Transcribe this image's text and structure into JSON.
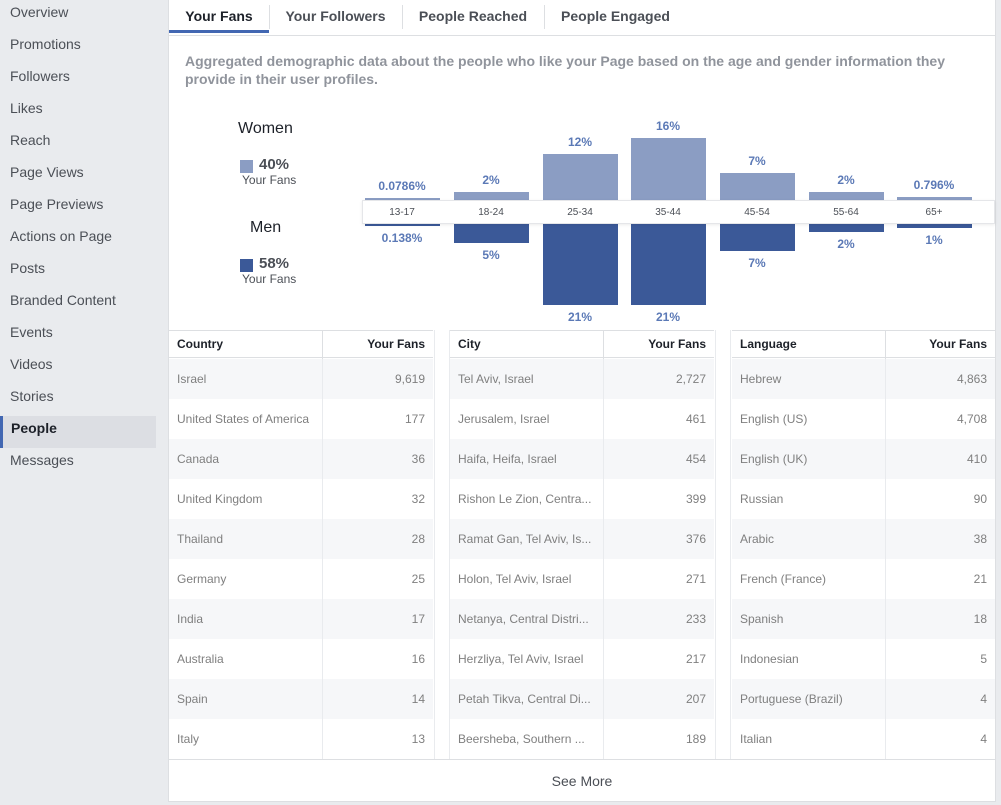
{
  "sidebar": {
    "items": [
      {
        "label": "Overview"
      },
      {
        "label": "Promotions"
      },
      {
        "label": "Followers"
      },
      {
        "label": "Likes"
      },
      {
        "label": "Reach"
      },
      {
        "label": "Page Views"
      },
      {
        "label": "Page Previews"
      },
      {
        "label": "Actions on Page"
      },
      {
        "label": "Posts"
      },
      {
        "label": "Branded Content"
      },
      {
        "label": "Events"
      },
      {
        "label": "Videos"
      },
      {
        "label": "Stories"
      },
      {
        "label": "People",
        "active": true
      },
      {
        "label": "Messages"
      }
    ]
  },
  "tabs": [
    {
      "label": "Your Fans",
      "active": true
    },
    {
      "label": "Your Followers"
    },
    {
      "label": "People Reached"
    },
    {
      "label": "People Engaged"
    }
  ],
  "description": "Aggregated demographic data about the people who like your Page based on the age and gender information they provide in their user profiles.",
  "legend": {
    "women": {
      "title": "Women",
      "pct": "40%",
      "sub": "Your Fans",
      "color": "#8b9dc3"
    },
    "men": {
      "title": "Men",
      "pct": "58%",
      "sub": "Your Fans",
      "color": "#3b5998"
    }
  },
  "chart_data": {
    "type": "bar",
    "categories": [
      "13-17",
      "18-24",
      "25-34",
      "35-44",
      "45-54",
      "55-64",
      "65+"
    ],
    "series": [
      {
        "name": "Women",
        "values": [
          0.0786,
          2,
          12,
          16,
          7,
          2,
          0.796
        ],
        "labels": [
          "0.0786%",
          "2%",
          "12%",
          "16%",
          "7%",
          "2%",
          "0.796%"
        ],
        "color": "#8b9dc3"
      },
      {
        "name": "Men",
        "values": [
          0.138,
          5,
          21,
          21,
          7,
          2,
          1
        ],
        "labels": [
          "0.138%",
          "5%",
          "21%",
          "21%",
          "7%",
          "2%",
          "1%"
        ],
        "color": "#3b5998"
      }
    ]
  },
  "tables": {
    "country": {
      "headers": [
        "Country",
        "Your Fans"
      ],
      "rows": [
        [
          "Israel",
          "9,619"
        ],
        [
          "United States of America",
          "177"
        ],
        [
          "Canada",
          "36"
        ],
        [
          "United Kingdom",
          "32"
        ],
        [
          "Thailand",
          "28"
        ],
        [
          "Germany",
          "25"
        ],
        [
          "India",
          "17"
        ],
        [
          "Australia",
          "16"
        ],
        [
          "Spain",
          "14"
        ],
        [
          "Italy",
          "13"
        ]
      ]
    },
    "city": {
      "headers": [
        "City",
        "Your Fans"
      ],
      "rows": [
        [
          "Tel Aviv, Israel",
          "2,727"
        ],
        [
          "Jerusalem, Israel",
          "461"
        ],
        [
          "Haifa, Heifa, Israel",
          "454"
        ],
        [
          "Rishon Le Zion, Centra...",
          "399"
        ],
        [
          "Ramat Gan, Tel Aviv, Is...",
          "376"
        ],
        [
          "Holon, Tel Aviv, Israel",
          "271"
        ],
        [
          "Netanya, Central Distri...",
          "233"
        ],
        [
          "Herzliya, Tel Aviv, Israel",
          "217"
        ],
        [
          "Petah Tikva, Central Di...",
          "207"
        ],
        [
          "Beersheba, Southern ...",
          "189"
        ]
      ]
    },
    "language": {
      "headers": [
        "Language",
        "Your Fans"
      ],
      "rows": [
        [
          "Hebrew",
          "4,863"
        ],
        [
          "English (US)",
          "4,708"
        ],
        [
          "English (UK)",
          "410"
        ],
        [
          "Russian",
          "90"
        ],
        [
          "Arabic",
          "38"
        ],
        [
          "French (France)",
          "21"
        ],
        [
          "Spanish",
          "18"
        ],
        [
          "Indonesian",
          "5"
        ],
        [
          "Portuguese (Brazil)",
          "4"
        ],
        [
          "Italian",
          "4"
        ]
      ]
    }
  },
  "see_more": "See More"
}
